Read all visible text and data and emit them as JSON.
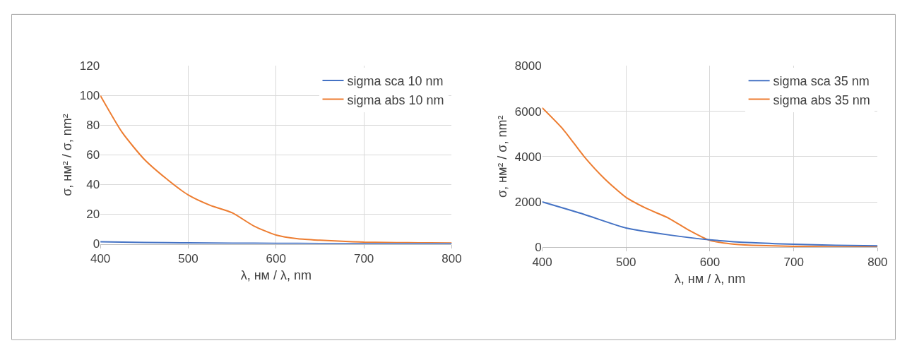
{
  "chart_data": [
    {
      "type": "line",
      "xlabel": "λ, нм / λ, nm",
      "ylabel": "σ, нм² / σ, nm²",
      "xlim": [
        400,
        800
      ],
      "xticks": [
        400,
        500,
        600,
        700,
        800
      ],
      "ylim": [
        0,
        120
      ],
      "yticks": [
        0,
        20,
        40,
        60,
        80,
        100,
        120
      ],
      "grid": true,
      "legend": "top right",
      "series": [
        {
          "name": "sigma sca 10 nm",
          "color": "#4472c4",
          "x": [
            400,
            450,
            500,
            550,
            600,
            650,
            700,
            750,
            800
          ],
          "values": [
            1.5,
            1,
            0.7,
            0.5,
            0.4,
            0.3,
            0.3,
            0.2,
            0.2
          ]
        },
        {
          "name": "sigma abs 10 nm",
          "color": "#ed7d31",
          "x": [
            400,
            425,
            450,
            475,
            500,
            525,
            550,
            575,
            600,
            625,
            650,
            675,
            700,
            725,
            750,
            775,
            800
          ],
          "values": [
            100,
            75,
            57,
            44,
            33,
            26,
            21,
            12,
            6,
            3.5,
            2.5,
            1.8,
            1.2,
            1,
            0.8,
            0.7,
            0.6
          ]
        }
      ]
    },
    {
      "type": "line",
      "xlabel": "λ, нм / λ, nm",
      "ylabel": "σ, нм² / σ, nm²",
      "xlim": [
        400,
        800
      ],
      "xticks": [
        400,
        500,
        600,
        700,
        800
      ],
      "ylim": [
        0,
        8000
      ],
      "yticks": [
        0,
        2000,
        4000,
        6000,
        8000
      ],
      "grid": true,
      "legend": "top right",
      "series": [
        {
          "name": "sigma sca 35 nm",
          "color": "#4472c4",
          "x": [
            400,
            450,
            500,
            550,
            600,
            650,
            700,
            750,
            800
          ],
          "values": [
            2000,
            1450,
            850,
            550,
            330,
            200,
            130,
            90,
            60
          ]
        },
        {
          "name": "sigma abs 35 nm",
          "color": "#ed7d31",
          "x": [
            400,
            425,
            450,
            475,
            500,
            525,
            550,
            575,
            600,
            625,
            650,
            700,
            750,
            800
          ],
          "values": [
            6150,
            5200,
            4000,
            3000,
            2200,
            1700,
            1300,
            750,
            300,
            150,
            90,
            40,
            20,
            10
          ]
        }
      ]
    }
  ]
}
